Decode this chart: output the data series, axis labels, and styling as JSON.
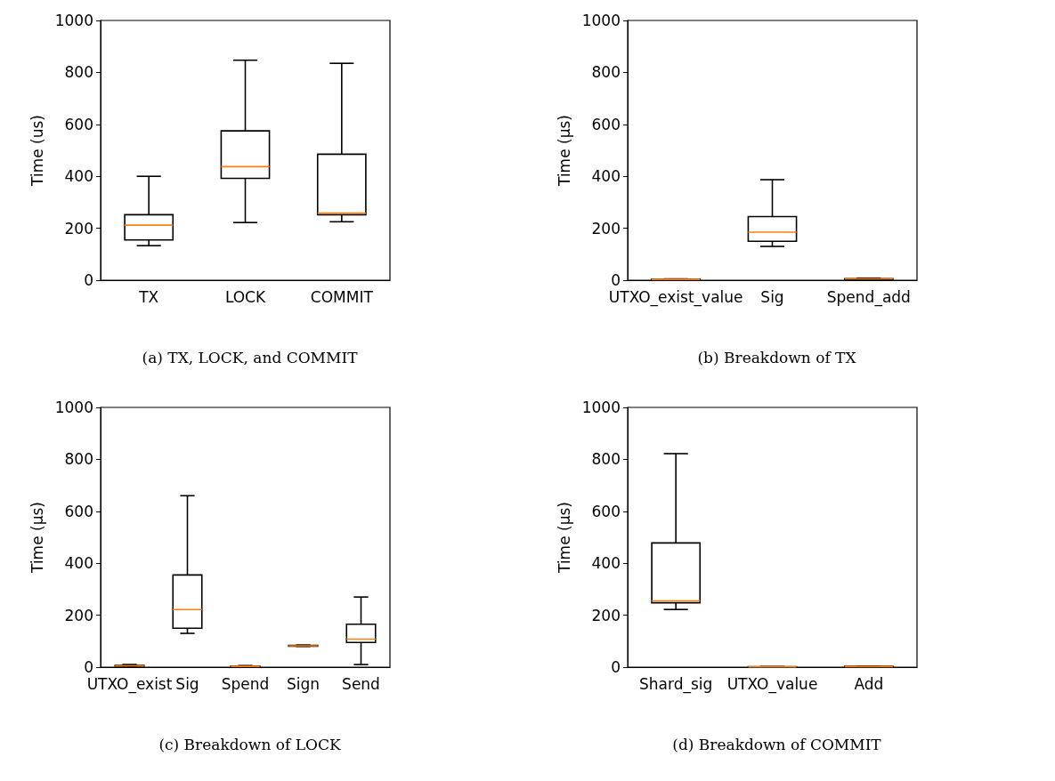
{
  "chart_data": [
    {
      "type": "box",
      "title": "(a) TX, LOCK, and COMMIT",
      "ylabel": "Time (us)",
      "categories": [
        "TX",
        "LOCK",
        "COMMIT"
      ],
      "ylim": [
        0,
        1000
      ],
      "yticks": [
        0,
        200,
        400,
        600,
        800,
        1000
      ],
      "series": [
        {
          "color": "#000000",
          "boxes": [
            {
              "low": 133,
              "q1": 155,
              "median": 212,
              "q3": 252,
              "high": 400
            },
            {
              "low": 222,
              "q1": 392,
              "median": 437,
              "q3": 575,
              "high": 847
            },
            {
              "low": 225,
              "q1": 252,
              "median": 258,
              "q3": 485,
              "high": 835
            }
          ]
        }
      ]
    },
    {
      "type": "box",
      "title": "(b) Breakdown of TX",
      "ylabel": "Time (μs)",
      "categories": [
        "UTXO_exist_value",
        "Sig",
        "Spend_add"
      ],
      "ylim": [
        0,
        1000
      ],
      "yticks": [
        0,
        200,
        400,
        600,
        800,
        1000
      ],
      "series": [
        {
          "color": "#000000",
          "boxes": [
            {
              "low": 1,
              "q1": 2,
              "median": 3,
              "q3": 4,
              "high": 5
            },
            {
              "low": 130,
              "q1": 150,
              "median": 185,
              "q3": 245,
              "high": 387
            },
            {
              "low": 2,
              "q1": 3,
              "median": 5,
              "q3": 6,
              "high": 8
            }
          ]
        }
      ]
    },
    {
      "type": "box",
      "title": "(c) Breakdown of LOCK",
      "ylabel": "Time (μs)",
      "categories": [
        "UTXO_exist",
        "Sig",
        "Spend",
        "Sign",
        "Send"
      ],
      "ylim": [
        0,
        1000
      ],
      "yticks": [
        0,
        200,
        400,
        600,
        800,
        1000
      ],
      "series": [
        {
          "color": "#000000",
          "boxes": [
            {
              "low": 2,
              "q1": 4,
              "median": 5,
              "q3": 7,
              "high": 10
            },
            {
              "low": 130,
              "q1": 150,
              "median": 222,
              "q3": 355,
              "high": 660
            },
            {
              "low": 1,
              "q1": 2,
              "median": 3,
              "q3": 4,
              "high": 6
            },
            {
              "low": 80,
              "q1": 81,
              "median": 82,
              "q3": 84,
              "high": 85
            },
            {
              "low": 10,
              "q1": 95,
              "median": 108,
              "q3": 165,
              "high": 270
            }
          ]
        }
      ]
    },
    {
      "type": "box",
      "title": "(d) Breakdown of COMMIT",
      "ylabel": "Time (μs)",
      "categories": [
        "Shard_sig",
        "UTXO_value",
        "Add"
      ],
      "ylim": [
        0,
        1000
      ],
      "yticks": [
        0,
        200,
        400,
        600,
        800,
        1000
      ],
      "series": [
        {
          "color": "#000000",
          "boxes": [
            {
              "low": 222,
              "q1": 248,
              "median": 255,
              "q3": 478,
              "high": 822
            },
            {
              "low": 0,
              "q1": 0.5,
              "median": 1,
              "q3": 1.5,
              "high": 2
            },
            {
              "low": 1,
              "q1": 1.5,
              "median": 2,
              "q3": 3,
              "high": 4
            }
          ]
        }
      ]
    }
  ]
}
